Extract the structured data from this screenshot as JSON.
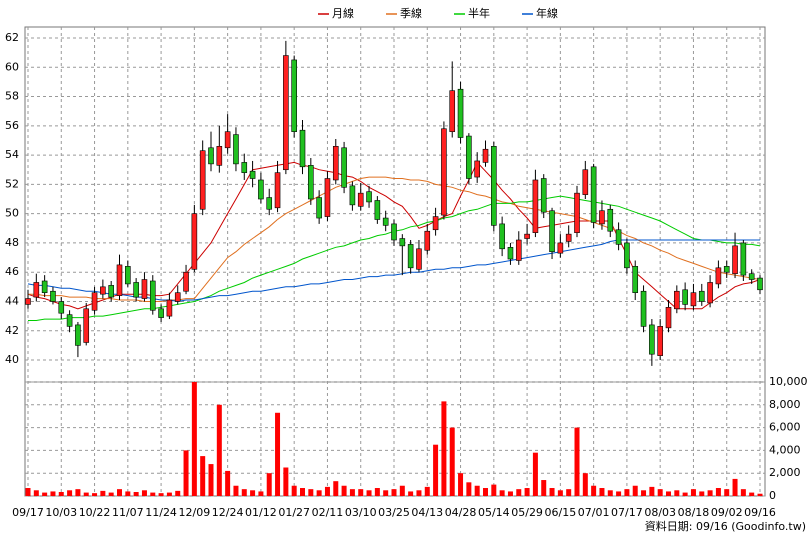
{
  "chart_data": {
    "type": "candlestick",
    "categories": [
      "09/17",
      null,
      null,
      null,
      "10/03",
      null,
      null,
      null,
      "10/22",
      null,
      null,
      null,
      "11/07",
      null,
      null,
      null,
      "11/24",
      null,
      null,
      null,
      "12/09",
      null,
      null,
      null,
      "12/24",
      null,
      null,
      null,
      "01/12",
      null,
      null,
      null,
      "01/27",
      null,
      null,
      null,
      "02/11",
      null,
      null,
      null,
      "03/10",
      null,
      null,
      null,
      "03/25",
      null,
      null,
      null,
      "04/13",
      null,
      null,
      null,
      "04/28",
      null,
      null,
      null,
      "05/14",
      null,
      null,
      null,
      "05/29",
      null,
      null,
      null,
      "06/15",
      null,
      null,
      null,
      "07/01",
      null,
      null,
      null,
      "07/17",
      null,
      null,
      null,
      "08/03",
      null,
      null,
      null,
      "08/18",
      null,
      null,
      null,
      "09/02",
      null,
      null,
      null,
      "09/16"
    ],
    "open": [
      43.8,
      44.3,
      45.4,
      44.7,
      44.0,
      43.1,
      42.4,
      41.2,
      43.4,
      44.5,
      45.1,
      44.4,
      46.4,
      45.3,
      44.2,
      45.4,
      43.5,
      43.0,
      44.0,
      44.7,
      46.2,
      50.3,
      54.5,
      53.3,
      54.5,
      55.4,
      53.5,
      52.9,
      52.3,
      51.1,
      50.4,
      53.0,
      60.5,
      55.7,
      53.3,
      51.1,
      49.8,
      52.3,
      54.5,
      51.9,
      50.5,
      51.5,
      50.9,
      49.7,
      49.3,
      48.3,
      47.9,
      46.2,
      47.5,
      48.9,
      49.9,
      55.6,
      58.5,
      55.3,
      52.5,
      53.5,
      54.6,
      49.3,
      47.7,
      46.8,
      48.3,
      48.7,
      52.4,
      50.2,
      47.3,
      48.1,
      48.7,
      51.3,
      53.2,
      49.3,
      50.3,
      48.9,
      48.0,
      46.4,
      44.7,
      42.4,
      40.3,
      42.2,
      43.5,
      44.8,
      43.7,
      44.7,
      43.9,
      45.2,
      46.4,
      45.9,
      48.0,
      45.9,
      45.6
    ],
    "high": [
      44.8,
      45.9,
      45.8,
      45.0,
      44.3,
      43.4,
      42.6,
      43.9,
      45.0,
      45.5,
      45.4,
      47.2,
      46.8,
      45.6,
      46.0,
      45.8,
      43.8,
      44.6,
      45.1,
      46.5,
      50.6,
      55.0,
      55.6,
      56.0,
      56.8,
      55.9,
      54.1,
      53.6,
      52.8,
      51.7,
      53.6,
      61.8,
      60.8,
      56.4,
      53.8,
      51.6,
      52.9,
      55.1,
      54.9,
      52.2,
      52.1,
      51.9,
      51.2,
      50.2,
      49.6,
      48.6,
      48.2,
      48.2,
      49.3,
      50.4,
      56.3,
      60.4,
      59.0,
      55.5,
      54.2,
      55.0,
      54.9,
      49.8,
      48.0,
      48.8,
      49.3,
      53.0,
      52.7,
      50.4,
      48.6,
      49.2,
      51.9,
      53.6,
      53.4,
      50.9,
      50.6,
      49.4,
      48.3,
      46.8,
      45.1,
      42.8,
      42.8,
      44.1,
      45.1,
      45.3,
      45.2,
      45.2,
      45.8,
      46.8,
      46.8,
      48.7,
      48.2,
      46.2,
      45.8
    ],
    "low": [
      43.5,
      44.0,
      44.3,
      43.8,
      42.8,
      41.9,
      40.2,
      41.0,
      43.1,
      44.2,
      44.0,
      44.1,
      45.0,
      44.0,
      44.0,
      43.1,
      42.6,
      42.8,
      43.8,
      44.5,
      46.0,
      49.9,
      52.9,
      52.8,
      54.1,
      52.9,
      52.3,
      51.8,
      50.7,
      49.9,
      50.1,
      52.7,
      55.2,
      52.7,
      50.6,
      49.3,
      49.5,
      52.0,
      51.4,
      50.2,
      50.2,
      50.4,
      49.3,
      48.8,
      47.8,
      45.8,
      45.9,
      46.0,
      47.2,
      48.5,
      49.6,
      55.2,
      54.8,
      52.0,
      52.1,
      53.2,
      48.8,
      47.1,
      46.5,
      46.5,
      47.9,
      48.4,
      49.7,
      46.9,
      47.0,
      47.7,
      48.4,
      51.0,
      49.0,
      48.9,
      48.4,
      47.5,
      45.9,
      44.1,
      41.9,
      39.6,
      40.0,
      41.9,
      43.2,
      43.4,
      43.4,
      43.7,
      43.6,
      44.9,
      45.6,
      45.6,
      45.4,
      45.2,
      44.5
    ],
    "close": [
      44.2,
      45.3,
      44.6,
      44.0,
      43.2,
      42.3,
      41.0,
      43.5,
      44.6,
      45.0,
      44.3,
      46.5,
      45.2,
      44.3,
      45.5,
      43.4,
      42.9,
      44.1,
      44.6,
      46.0,
      50.0,
      54.3,
      53.4,
      54.6,
      55.6,
      53.4,
      52.8,
      52.4,
      51.0,
      50.3,
      52.8,
      60.8,
      55.6,
      53.2,
      51.0,
      49.7,
      52.4,
      54.6,
      51.8,
      50.6,
      51.4,
      50.8,
      49.6,
      49.2,
      48.2,
      47.8,
      46.3,
      47.6,
      48.8,
      49.8,
      55.8,
      58.4,
      55.2,
      52.4,
      53.6,
      54.4,
      49.2,
      47.6,
      46.9,
      48.2,
      48.6,
      52.3,
      50.1,
      47.4,
      48.0,
      48.6,
      51.4,
      53.0,
      49.4,
      50.2,
      48.8,
      47.9,
      46.3,
      44.6,
      42.3,
      40.4,
      42.3,
      43.6,
      44.7,
      43.8,
      44.6,
      44.0,
      45.3,
      46.3,
      46.0,
      47.8,
      45.8,
      45.5,
      44.8
    ],
    "up_color": "#ff2020",
    "down_color": "#20c020",
    "series": [
      {
        "name": "月線",
        "color": "#cc0000",
        "values": [
          44.5,
          44.3,
          44.2,
          44.0,
          43.8,
          43.7,
          43.5,
          43.7,
          43.9,
          44.1,
          44.3,
          44.5,
          44.5,
          44.5,
          44.5,
          44.4,
          44.4,
          44.5,
          45.2,
          45.9,
          46.6,
          47.3,
          48.0,
          49.0,
          50.0,
          51.0,
          52.0,
          53.0,
          53.1,
          53.2,
          53.3,
          53.4,
          53.5,
          53.3,
          53.2,
          53.0,
          52.9,
          52.8,
          52.6,
          52.5,
          52.2,
          51.8,
          51.5,
          51.2,
          50.8,
          50.5,
          49.8,
          49.0,
          49.2,
          49.5,
          49.8,
          50.0,
          51.2,
          52.3,
          53.5,
          52.9,
          52.3,
          51.6,
          51.0,
          50.3,
          49.7,
          49.0,
          49.1,
          49.2,
          49.3,
          49.4,
          49.5,
          49.5,
          49.5,
          49.5,
          49.5,
          48.3,
          47.2,
          46.0,
          45.5,
          45.0,
          44.5,
          44.0,
          43.5,
          43.5,
          43.5,
          43.5,
          43.9,
          44.3,
          44.6,
          45.0,
          45.2,
          45.3,
          45.5
        ]
      },
      {
        "name": "季線",
        "color": "#e07020",
        "values": [
          44.5,
          44.5,
          44.4,
          44.4,
          44.4,
          44.3,
          44.3,
          44.3,
          44.2,
          44.2,
          44.2,
          44.1,
          44.1,
          44.1,
          44.0,
          44.0,
          44.0,
          44.1,
          44.1,
          44.2,
          44.2,
          44.9,
          45.6,
          46.3,
          47.0,
          47.4,
          47.9,
          48.3,
          48.7,
          49.1,
          49.6,
          50.0,
          50.3,
          50.6,
          50.9,
          51.2,
          51.5,
          51.8,
          52.0,
          52.2,
          52.4,
          52.5,
          52.5,
          52.5,
          52.4,
          52.4,
          52.3,
          52.3,
          52.2,
          52.0,
          51.9,
          51.8,
          51.6,
          51.5,
          51.3,
          51.2,
          51.0,
          50.8,
          50.7,
          50.5,
          50.4,
          50.3,
          50.2,
          50.1,
          50.0,
          49.9,
          49.8,
          49.6,
          49.4,
          49.2,
          49.0,
          48.8,
          48.5,
          48.3,
          48.0,
          47.8,
          47.5,
          47.3,
          47.0,
          46.8,
          46.6,
          46.4,
          46.2,
          46.0,
          45.9,
          45.8,
          45.7,
          45.6,
          45.5
        ]
      },
      {
        "name": "半年",
        "color": "#00cc00",
        "values": [
          42.7,
          42.7,
          42.8,
          42.8,
          42.8,
          42.9,
          42.9,
          42.9,
          43.0,
          43.0,
          43.1,
          43.2,
          43.3,
          43.4,
          43.5,
          43.5,
          43.6,
          43.7,
          43.8,
          43.9,
          44.0,
          44.2,
          44.4,
          44.7,
          44.9,
          45.1,
          45.3,
          45.6,
          45.8,
          46.0,
          46.2,
          46.4,
          46.6,
          46.9,
          47.1,
          47.3,
          47.5,
          47.7,
          47.8,
          48.0,
          48.2,
          48.3,
          48.5,
          48.6,
          48.8,
          48.9,
          49.1,
          49.2,
          49.4,
          49.5,
          49.7,
          49.8,
          50.0,
          50.2,
          50.3,
          50.5,
          50.7,
          50.7,
          50.7,
          50.8,
          50.8,
          50.9,
          51.0,
          51.1,
          51.2,
          51.1,
          51.0,
          50.9,
          50.8,
          50.7,
          50.6,
          50.5,
          50.3,
          50.1,
          49.9,
          49.7,
          49.5,
          49.2,
          48.9,
          48.6,
          48.3,
          48.2,
          48.2,
          48.1,
          48.0,
          48.0,
          47.9,
          47.9,
          47.8
        ]
      },
      {
        "name": "年線",
        "color": "#0055cc",
        "values": [
          45.2,
          45.1,
          45.1,
          45.0,
          44.9,
          44.9,
          44.8,
          44.7,
          44.7,
          44.6,
          44.5,
          44.5,
          44.4,
          44.3,
          44.3,
          44.2,
          44.1,
          44.1,
          44.0,
          44.1,
          44.1,
          44.2,
          44.3,
          44.4,
          44.4,
          44.5,
          44.6,
          44.7,
          44.7,
          44.8,
          44.9,
          45.0,
          45.0,
          45.1,
          45.2,
          45.2,
          45.3,
          45.4,
          45.5,
          45.5,
          45.6,
          45.7,
          45.7,
          45.8,
          45.8,
          45.9,
          46.0,
          46.0,
          46.1,
          46.2,
          46.2,
          46.3,
          46.3,
          46.4,
          46.5,
          46.5,
          46.6,
          46.7,
          46.8,
          46.9,
          47.0,
          47.1,
          47.2,
          47.3,
          47.4,
          47.5,
          47.6,
          47.7,
          47.8,
          47.9,
          48.1,
          48.2,
          48.2,
          48.2,
          48.2,
          48.2,
          48.2,
          48.2,
          48.2,
          48.2,
          48.2,
          48.2,
          48.2,
          48.2,
          48.2,
          48.2,
          48.2,
          48.2,
          48.2
        ]
      }
    ],
    "ylim": [
      38.5,
      62.75
    ],
    "yticks": [
      40,
      42,
      44,
      46,
      48,
      50,
      52,
      54,
      56,
      58,
      60,
      62
    ],
    "grid": true,
    "volume": {
      "color": "#ff0000",
      "values": [
        700,
        500,
        300,
        400,
        350,
        500,
        600,
        300,
        250,
        450,
        300,
        600,
        400,
        350,
        500,
        300,
        250,
        300,
        450,
        4000,
        10000,
        3500,
        2800,
        8000,
        2200,
        900,
        600,
        500,
        400,
        2000,
        7300,
        2500,
        900,
        700,
        600,
        500,
        800,
        1300,
        900,
        600,
        600,
        500,
        700,
        500,
        600,
        900,
        400,
        500,
        800,
        4500,
        8300,
        6000,
        2000,
        1200,
        900,
        700,
        1000,
        500,
        400,
        600,
        700,
        3800,
        1400,
        700,
        500,
        600,
        6000,
        2000,
        900,
        700,
        500,
        400,
        600,
        900,
        500,
        800,
        600,
        400,
        500,
        300,
        600,
        400,
        500,
        700,
        600,
        1500,
        600,
        300,
        200
      ],
      "ylim": [
        0,
        10000
      ],
      "yticks": [
        0,
        {
          "value": 2000,
          "label": "2,000"
        },
        {
          "value": 4000,
          "label": "4,000"
        },
        {
          "value": 6000,
          "label": "6,000"
        },
        {
          "value": 8000,
          "label": "8,000"
        },
        {
          "value": 10000,
          "label": "10,000"
        }
      ]
    },
    "footnote": "資料日期: 09/16 (Goodinfo.tw)"
  }
}
